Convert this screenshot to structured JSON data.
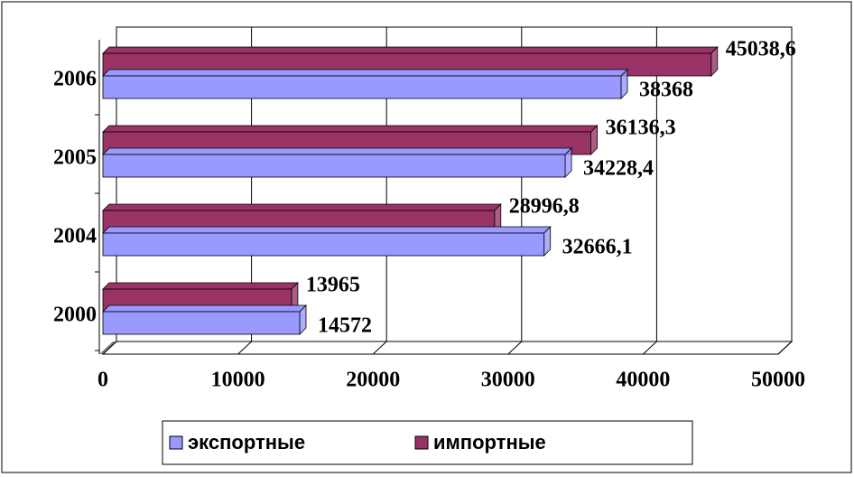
{
  "chart_data": {
    "type": "hbar3d",
    "categories": [
      "2000",
      "2004",
      "2005",
      "2006"
    ],
    "series": [
      {
        "name": "экспортные",
        "color": "#9999ff",
        "values": [
          14572,
          32666.1,
          34228.4,
          38368
        ],
        "value_labels": [
          "14572",
          "32666,1",
          "34228,4",
          "38368"
        ]
      },
      {
        "name": "импортные",
        "color": "#993366",
        "values": [
          13965,
          28996.8,
          36136.3,
          45038.6
        ],
        "value_labels": [
          "13965",
          "28996,8",
          "36136,3",
          "45038,6"
        ]
      }
    ],
    "xlim": [
      0,
      50000
    ],
    "xticks": [
      0,
      10000,
      20000,
      30000,
      40000,
      50000
    ],
    "grid": true
  }
}
